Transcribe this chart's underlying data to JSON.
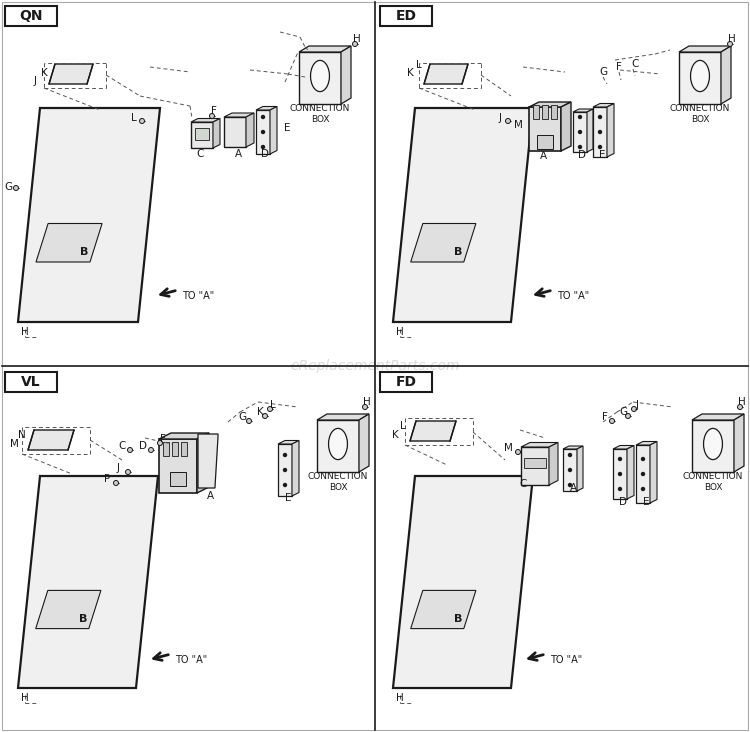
{
  "bg": "#ffffff",
  "lc": "#1a1a1a",
  "watermark": "eReplacementParts.com",
  "quadrants": [
    "QN",
    "ED",
    "VL",
    "FD"
  ],
  "conn_box": "CONNECTION\nBOX",
  "to_a": "TO \"A\""
}
